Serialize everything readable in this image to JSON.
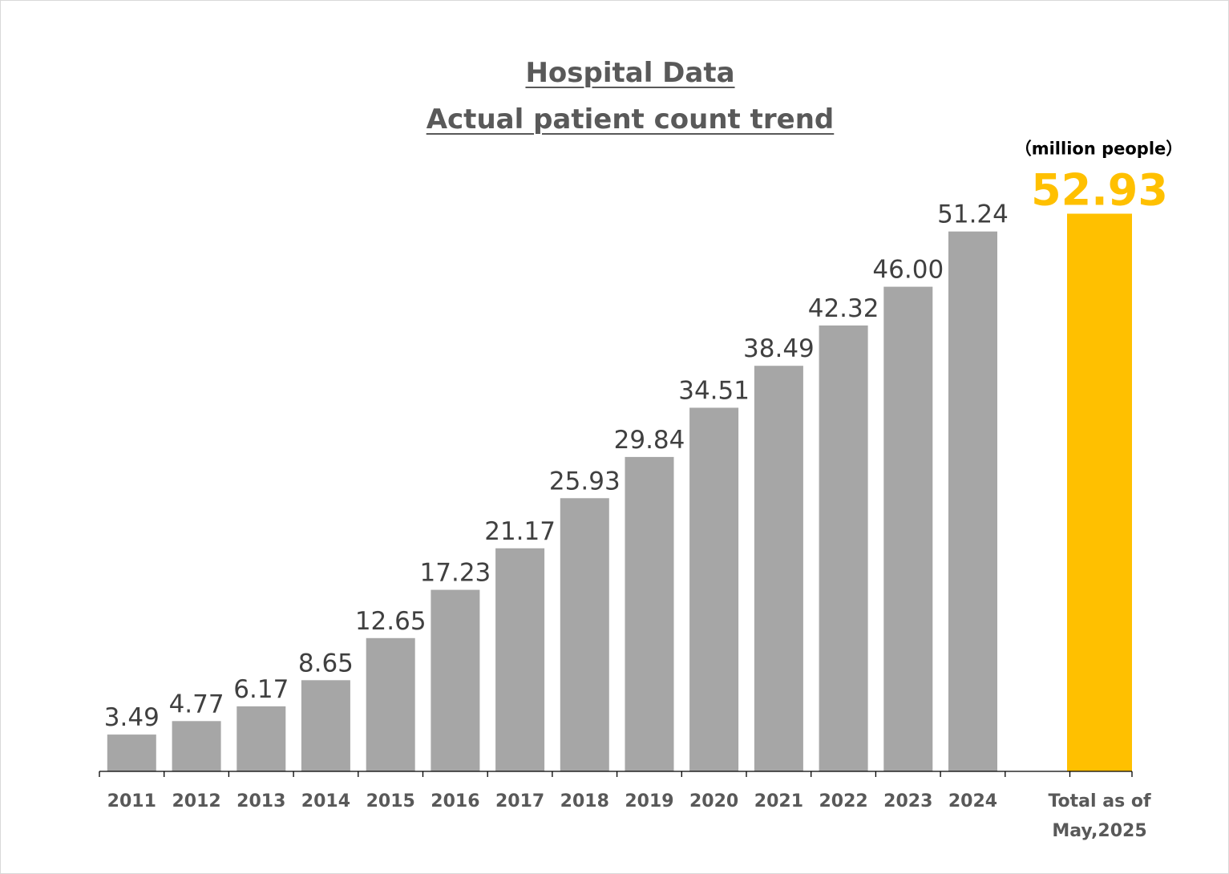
{
  "chart_data": {
    "type": "bar",
    "title": "Hospital Data",
    "subtitle": "Actual patient count trend",
    "unit_label": "（million people）",
    "categories": [
      "2011",
      "2012",
      "2013",
      "2014",
      "2015",
      "2016",
      "2017",
      "2018",
      "2019",
      "2020",
      "2021",
      "2022",
      "2023",
      "2024"
    ],
    "values": [
      3.49,
      4.77,
      6.17,
      8.65,
      12.65,
      17.23,
      21.17,
      25.93,
      29.84,
      34.51,
      38.49,
      42.32,
      46.0,
      51.24
    ],
    "value_labels": [
      "3.49",
      "4.77",
      "6.17",
      "8.65",
      "12.65",
      "17.23",
      "21.17",
      "25.93",
      "29.84",
      "34.51",
      "38.49",
      "42.32",
      "46.00",
      "51.24"
    ],
    "highlight": {
      "category_lines": [
        "Total as of",
        "May,2025"
      ],
      "value": 52.93,
      "value_label": "52.93"
    },
    "ylim": [
      0,
      55
    ],
    "grid": false,
    "legend": "none",
    "colors": {
      "bar": "#a6a6a6",
      "highlight_bar": "#ffc000",
      "highlight_text": "#ffc000",
      "axis": "#000000",
      "value_text": "#404040",
      "tick_text": "#595959",
      "title_text": "#595959"
    }
  }
}
